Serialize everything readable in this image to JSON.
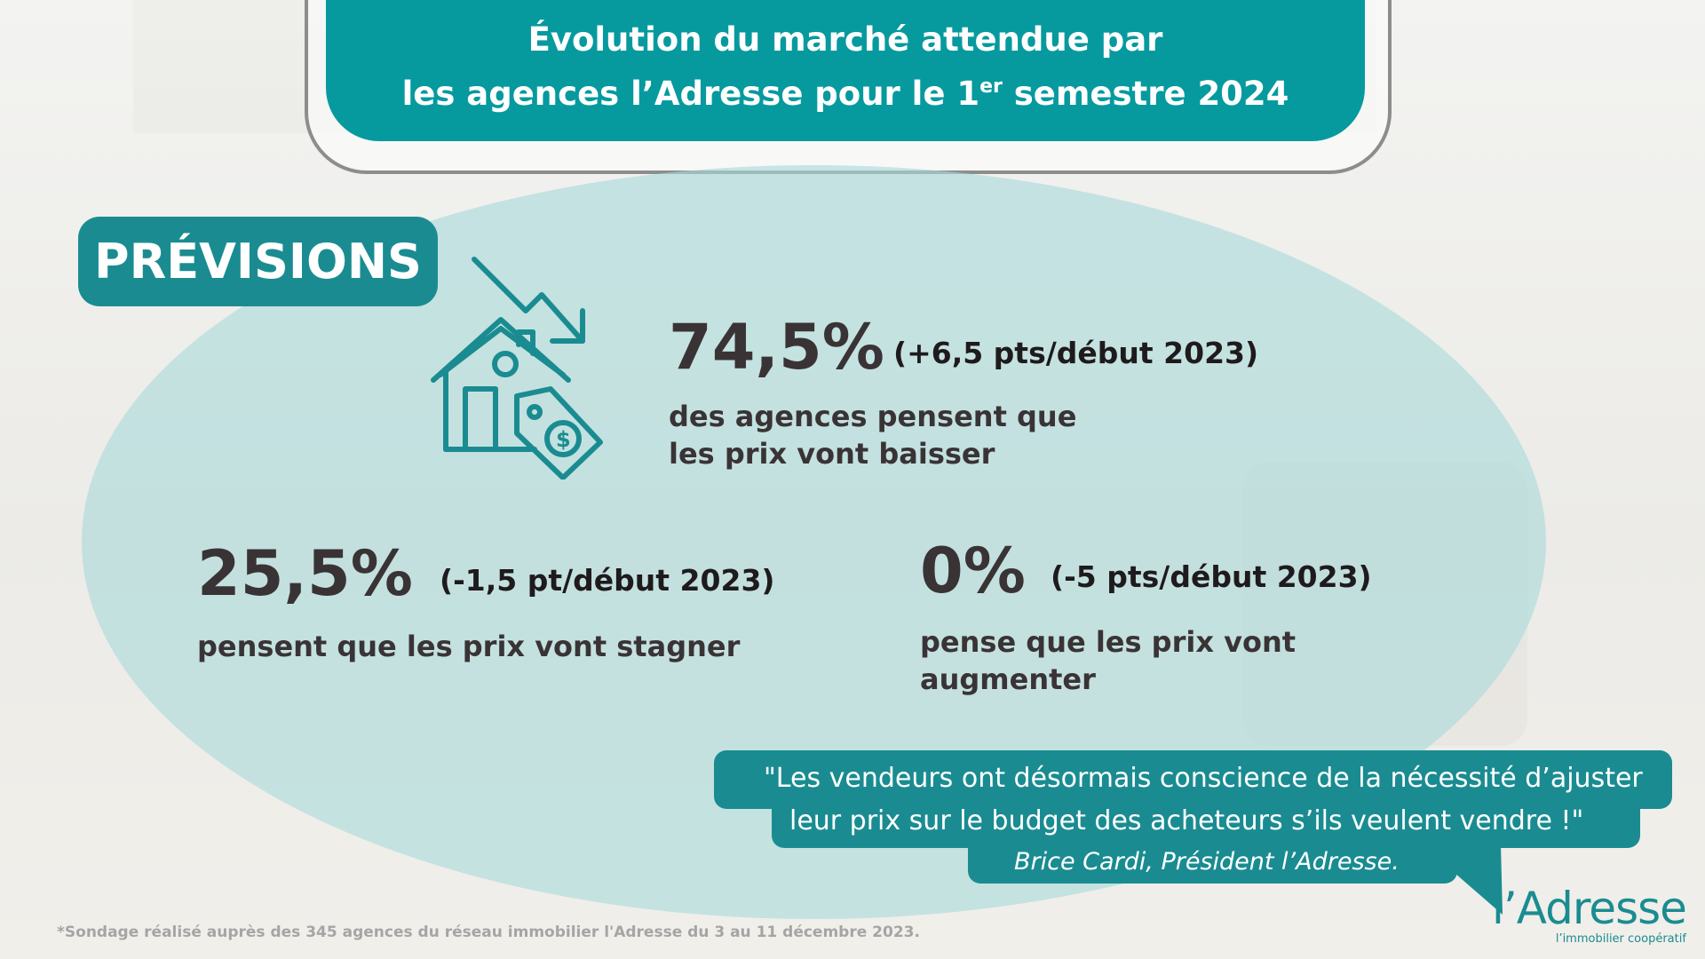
{
  "header": {
    "title_line1": "Évolution du marché attendue par",
    "title_line2_pre": "les agences l’Adresse pour le 1",
    "title_sup": "er",
    "title_line2_post": " semestre 2024"
  },
  "section_label": "PRÉVISIONS",
  "stats": [
    {
      "value": "74,5%",
      "delta": "(+6,5 pts/début 2023)",
      "desc_line1": "des agences pensent que",
      "desc_line2": "les prix vont baisser"
    },
    {
      "value": "25,5%",
      "delta": "(-1,5 pt/début 2023)",
      "desc_line1": "pensent que les prix vont stagner"
    },
    {
      "value": "0%",
      "delta": "(-5 pts/début 2023)",
      "desc_line1": "pense que les prix vont",
      "desc_line2": "augmenter"
    }
  ],
  "quote": {
    "line1": "\"Les vendeurs ont désormais conscience de la nécessité d’ajuster",
    "line2": "leur prix sur le budget des acheteurs s’ils veulent vendre !\"",
    "author": "Brice Cardi, Président l’Adresse."
  },
  "logo": {
    "name": "l’Adresse",
    "tagline": "l’immobilier coopératif"
  },
  "footnote": "*Sondage réalisé auprès des 345 agences du réseau immobilier l'Adresse du 3 au 11 décembre 2023.",
  "colors": {
    "teal": "#1a8c91",
    "banner": "#069a9f",
    "ellipse": "#c5e4e4"
  },
  "icons": [
    "house-price-down-icon"
  ]
}
